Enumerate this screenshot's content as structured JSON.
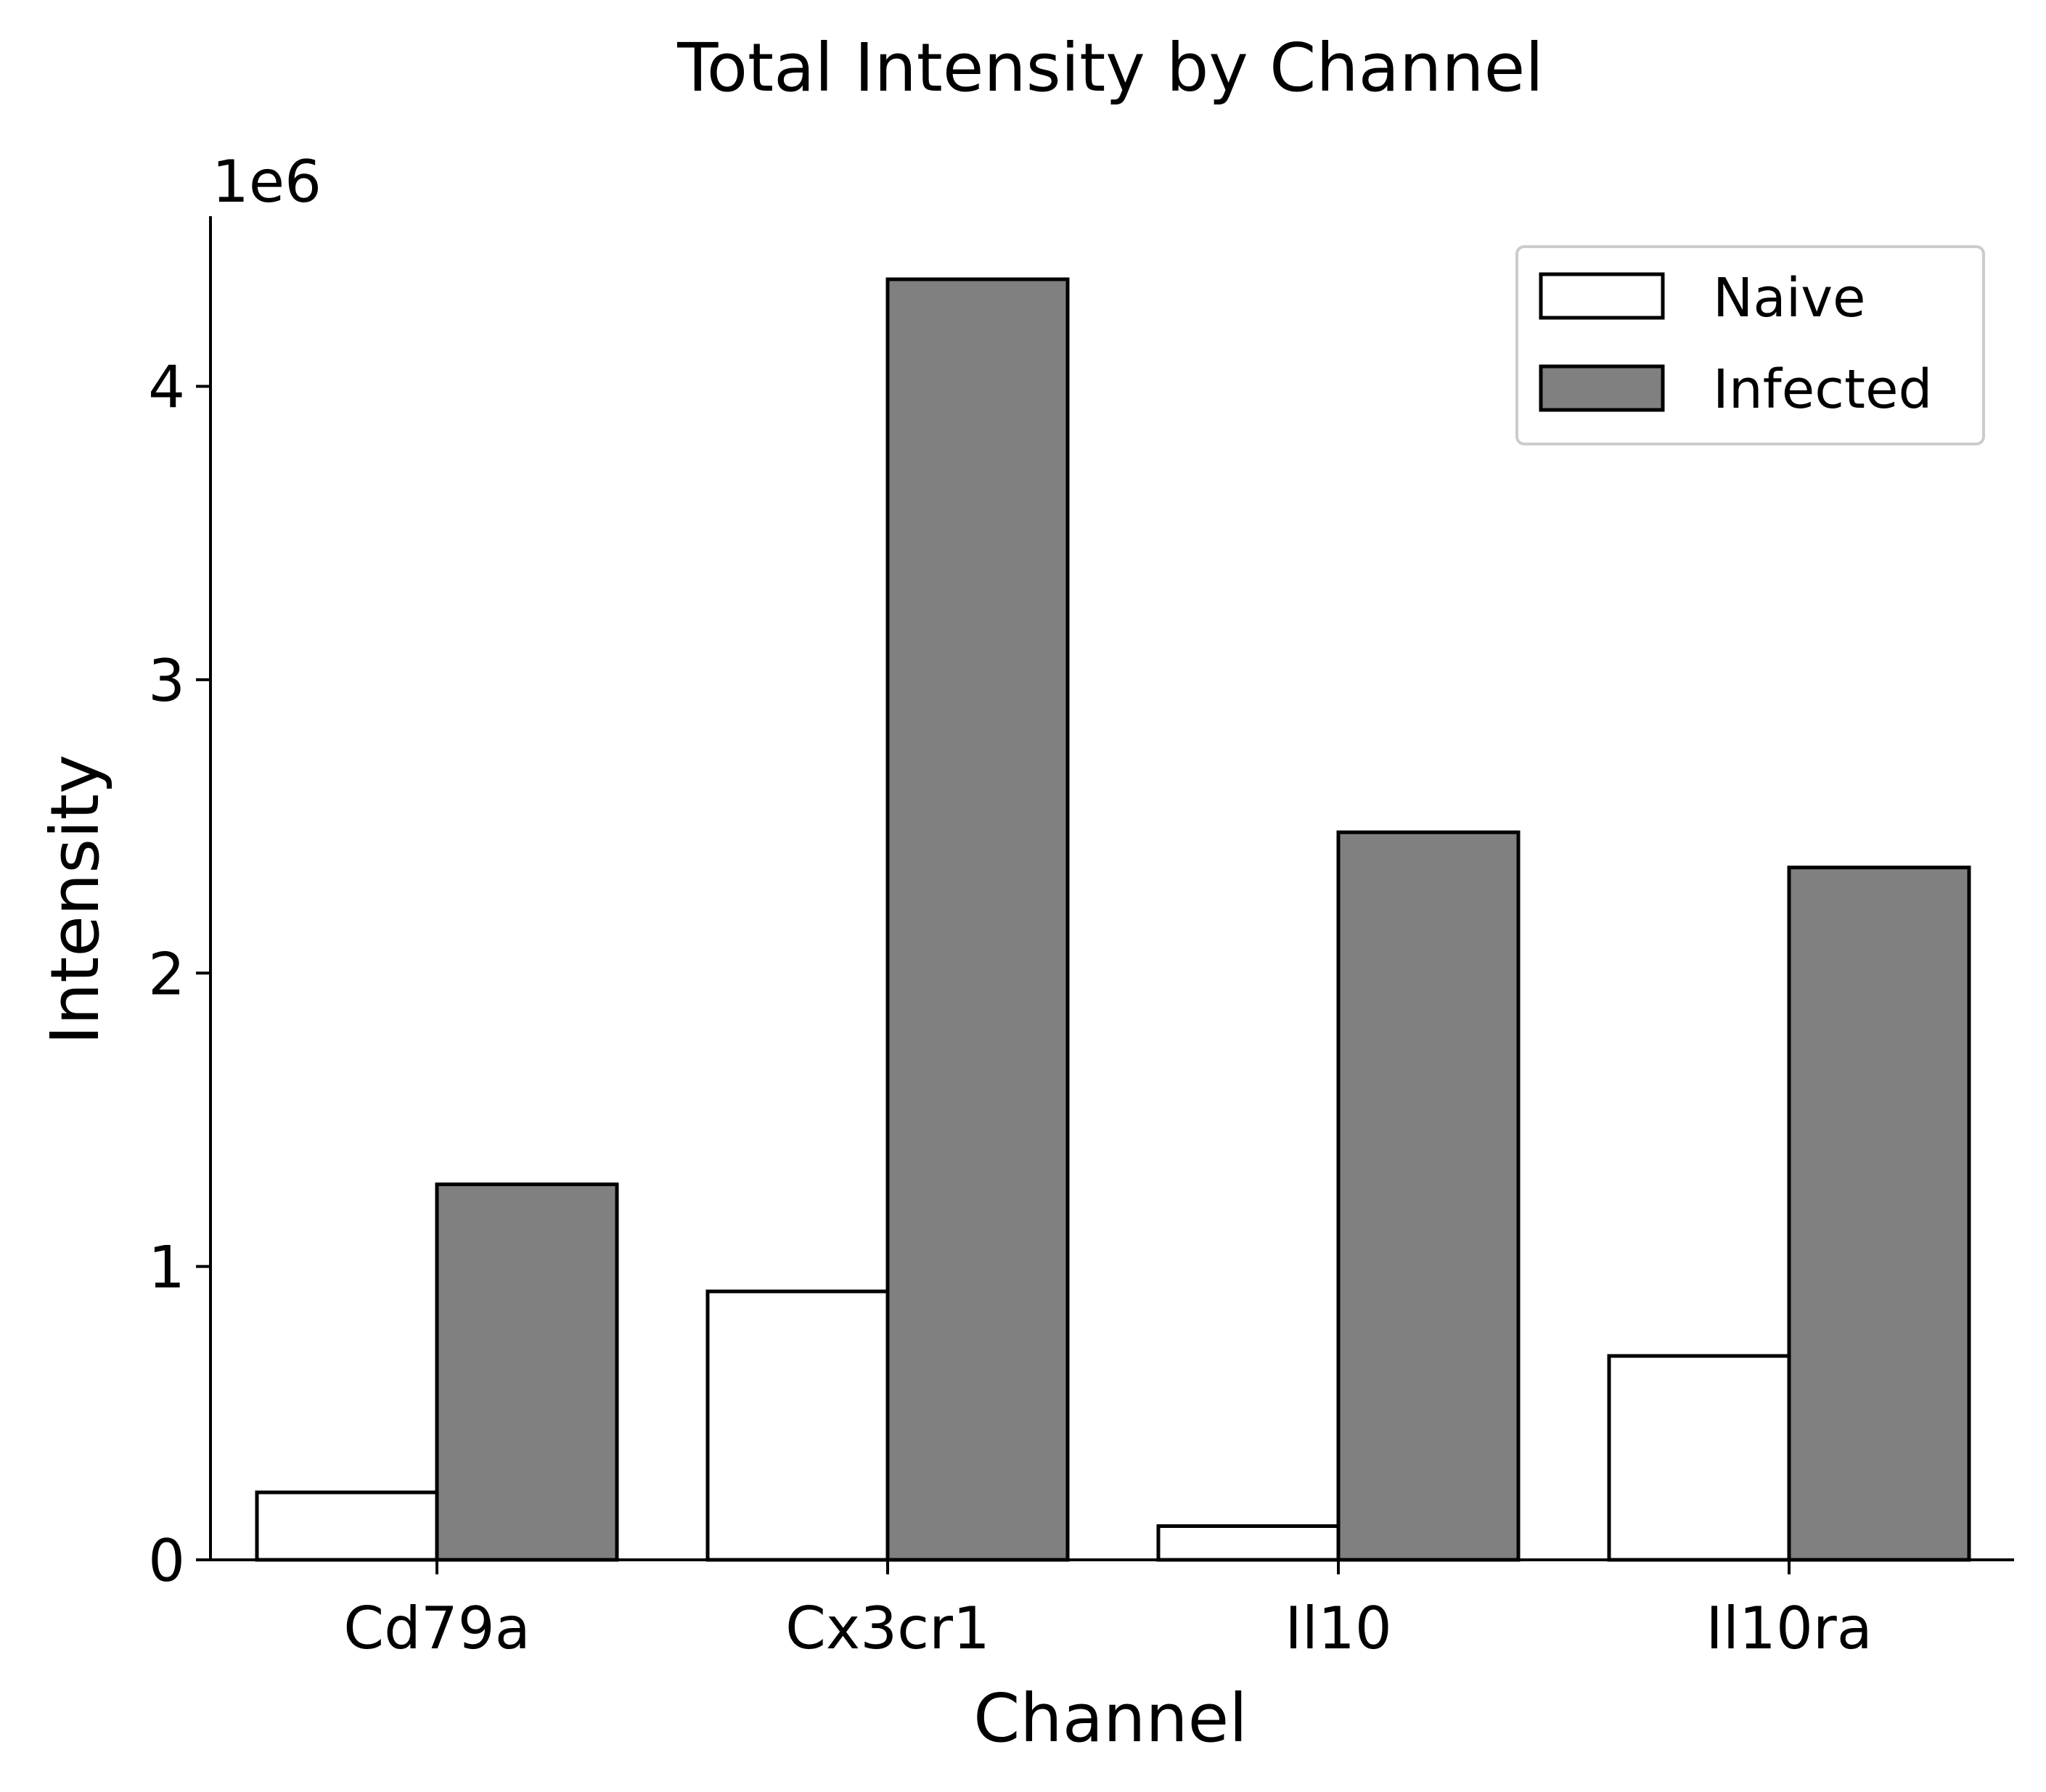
{
  "chart_data": {
    "type": "bar",
    "title": "Total Intensity by Channel",
    "xlabel": "Channel",
    "ylabel": "Intensity",
    "y_offset_label": "1e6",
    "categories": [
      "Cd79a",
      "Cx3cr1",
      "Il10",
      "Il10ra"
    ],
    "series": [
      {
        "name": "Naive",
        "color": "#ffffff",
        "values": [
          230000,
          915000,
          115000,
          695000
        ]
      },
      {
        "name": "Infected",
        "color": "#808080",
        "values": [
          1280000,
          4365000,
          2480000,
          2360000
        ]
      }
    ],
    "ylim": [
      0,
      4580000
    ],
    "y_ticks": [
      0,
      1000000,
      2000000,
      3000000,
      4000000
    ],
    "y_tick_labels": [
      "0",
      "1",
      "2",
      "3",
      "4"
    ],
    "grid": false,
    "legend_position": "top-right"
  }
}
